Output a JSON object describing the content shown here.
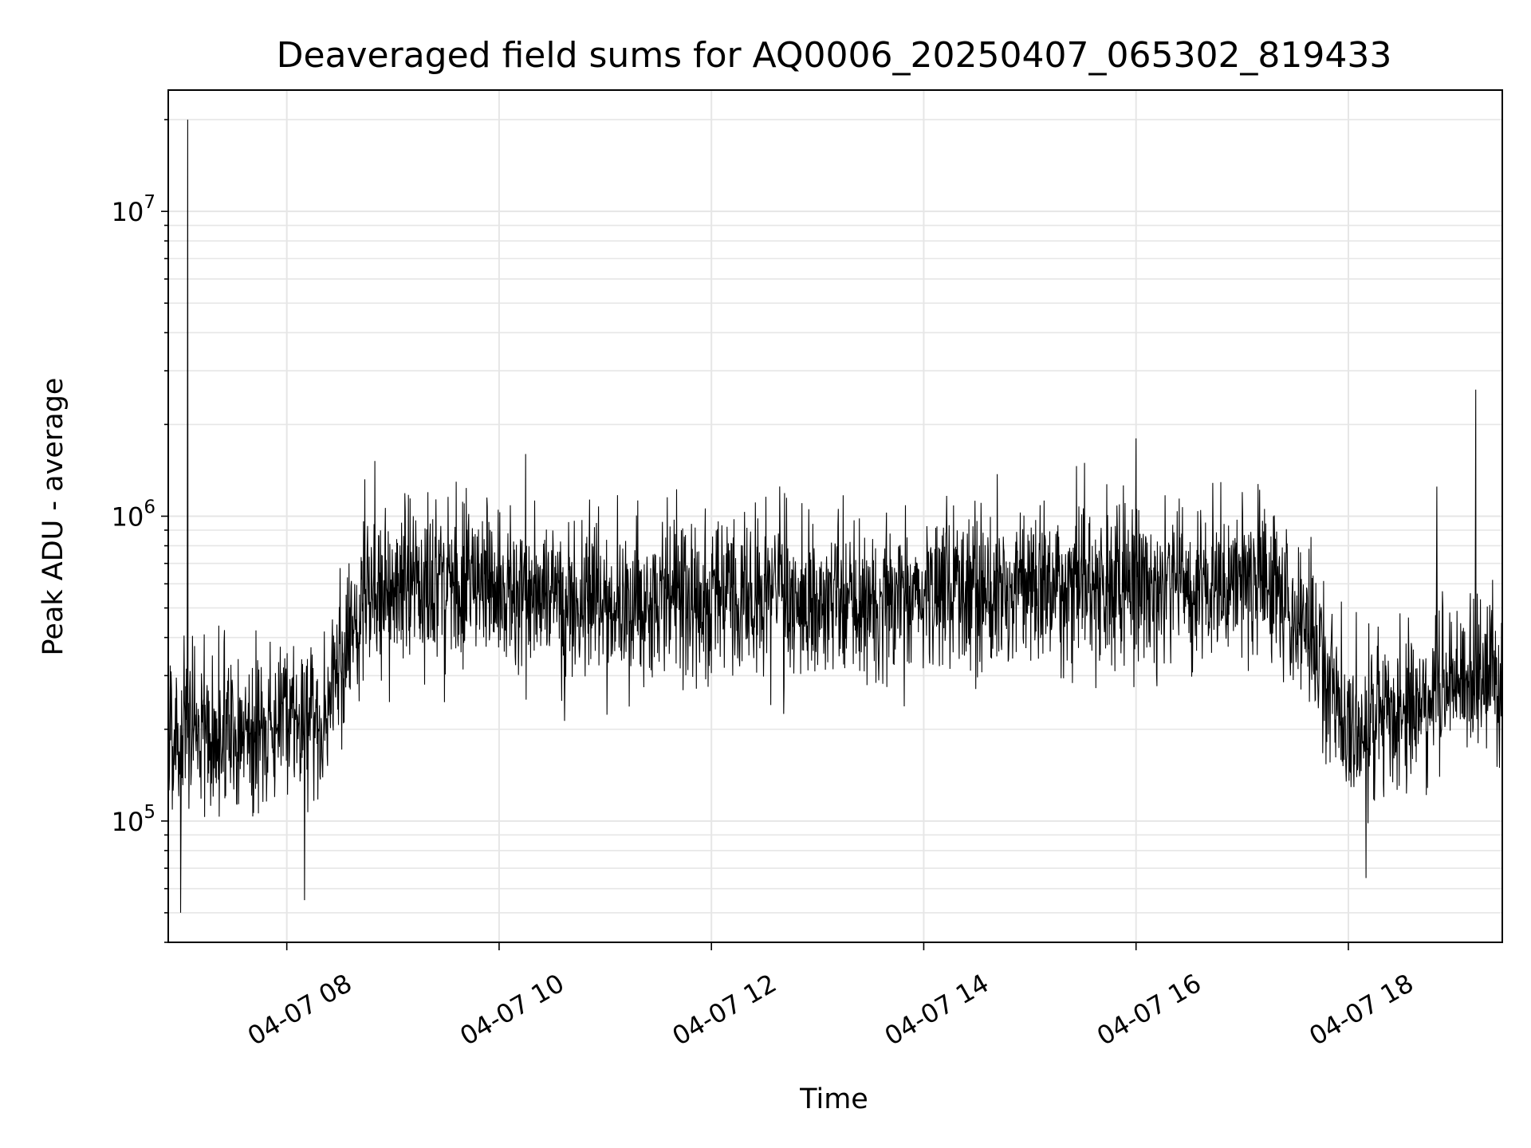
{
  "chart_data": {
    "type": "line",
    "title": "Deaveraged field sums for AQ0006_20250407_065302_819433",
    "xlabel": "Time",
    "ylabel": "Peak ADU - average",
    "yscale": "log",
    "ylim": [
      40000,
      25000000
    ],
    "xlim": [
      "2025-04-07 06:53",
      "2025-04-07 19:27"
    ],
    "grid": true,
    "line_color": "#000000",
    "grid_color": "#e6e6e6",
    "x_ticks": [
      {
        "t": "2025-04-07 08:00",
        "label": "04-07 08"
      },
      {
        "t": "2025-04-07 10:00",
        "label": "04-07 10"
      },
      {
        "t": "2025-04-07 12:00",
        "label": "04-07 12"
      },
      {
        "t": "2025-04-07 14:00",
        "label": "04-07 14"
      },
      {
        "t": "2025-04-07 16:00",
        "label": "04-07 16"
      },
      {
        "t": "2025-04-07 18:00",
        "label": "04-07 18"
      }
    ],
    "y_ticks": [
      {
        "value": 100000,
        "base": "10",
        "exp": "5"
      },
      {
        "value": 1000000,
        "base": "10",
        "exp": "6"
      },
      {
        "value": 10000000,
        "base": "10",
        "exp": "7"
      }
    ],
    "series": [
      {
        "baseline_envelope": [
          {
            "t": "2025-04-07 06:53",
            "median": 200000
          },
          {
            "t": "2025-04-07 07:30",
            "median": 190000
          },
          {
            "t": "2025-04-07 08:00",
            "median": 210000
          },
          {
            "t": "2025-04-07 08:20",
            "median": 200000
          },
          {
            "t": "2025-04-07 08:30",
            "median": 330000
          },
          {
            "t": "2025-04-07 08:45",
            "median": 550000
          },
          {
            "t": "2025-04-07 09:30",
            "median": 620000
          },
          {
            "t": "2025-04-07 10:00",
            "median": 580000
          },
          {
            "t": "2025-04-07 11:00",
            "median": 520000
          },
          {
            "t": "2025-04-07 12:00",
            "median": 540000
          },
          {
            "t": "2025-04-07 13:00",
            "median": 530000
          },
          {
            "t": "2025-04-07 14:00",
            "median": 560000
          },
          {
            "t": "2025-04-07 15:00",
            "median": 590000
          },
          {
            "t": "2025-04-07 16:00",
            "median": 580000
          },
          {
            "t": "2025-04-07 17:00",
            "median": 600000
          },
          {
            "t": "2025-04-07 17:20",
            "median": 610000
          },
          {
            "t": "2025-04-07 17:40",
            "median": 380000
          },
          {
            "t": "2025-04-07 18:00",
            "median": 200000
          },
          {
            "t": "2025-04-07 18:30",
            "median": 230000
          },
          {
            "t": "2025-04-07 19:00",
            "median": 290000
          },
          {
            "t": "2025-04-07 19:27",
            "median": 290000
          }
        ],
        "notable_points": [
          {
            "t": "2025-04-07 07:04",
            "value": 20000000
          },
          {
            "t": "2025-04-07 07:00",
            "value": 50000
          },
          {
            "t": "2025-04-07 08:10",
            "value": 55000
          },
          {
            "t": "2025-04-07 10:15",
            "value": 1600000
          },
          {
            "t": "2025-04-07 16:00",
            "value": 1800000
          },
          {
            "t": "2025-04-07 18:10",
            "value": 65000
          },
          {
            "t": "2025-04-07 18:50",
            "value": 1250000
          },
          {
            "t": "2025-04-07 19:12",
            "value": 2600000
          }
        ]
      }
    ]
  }
}
